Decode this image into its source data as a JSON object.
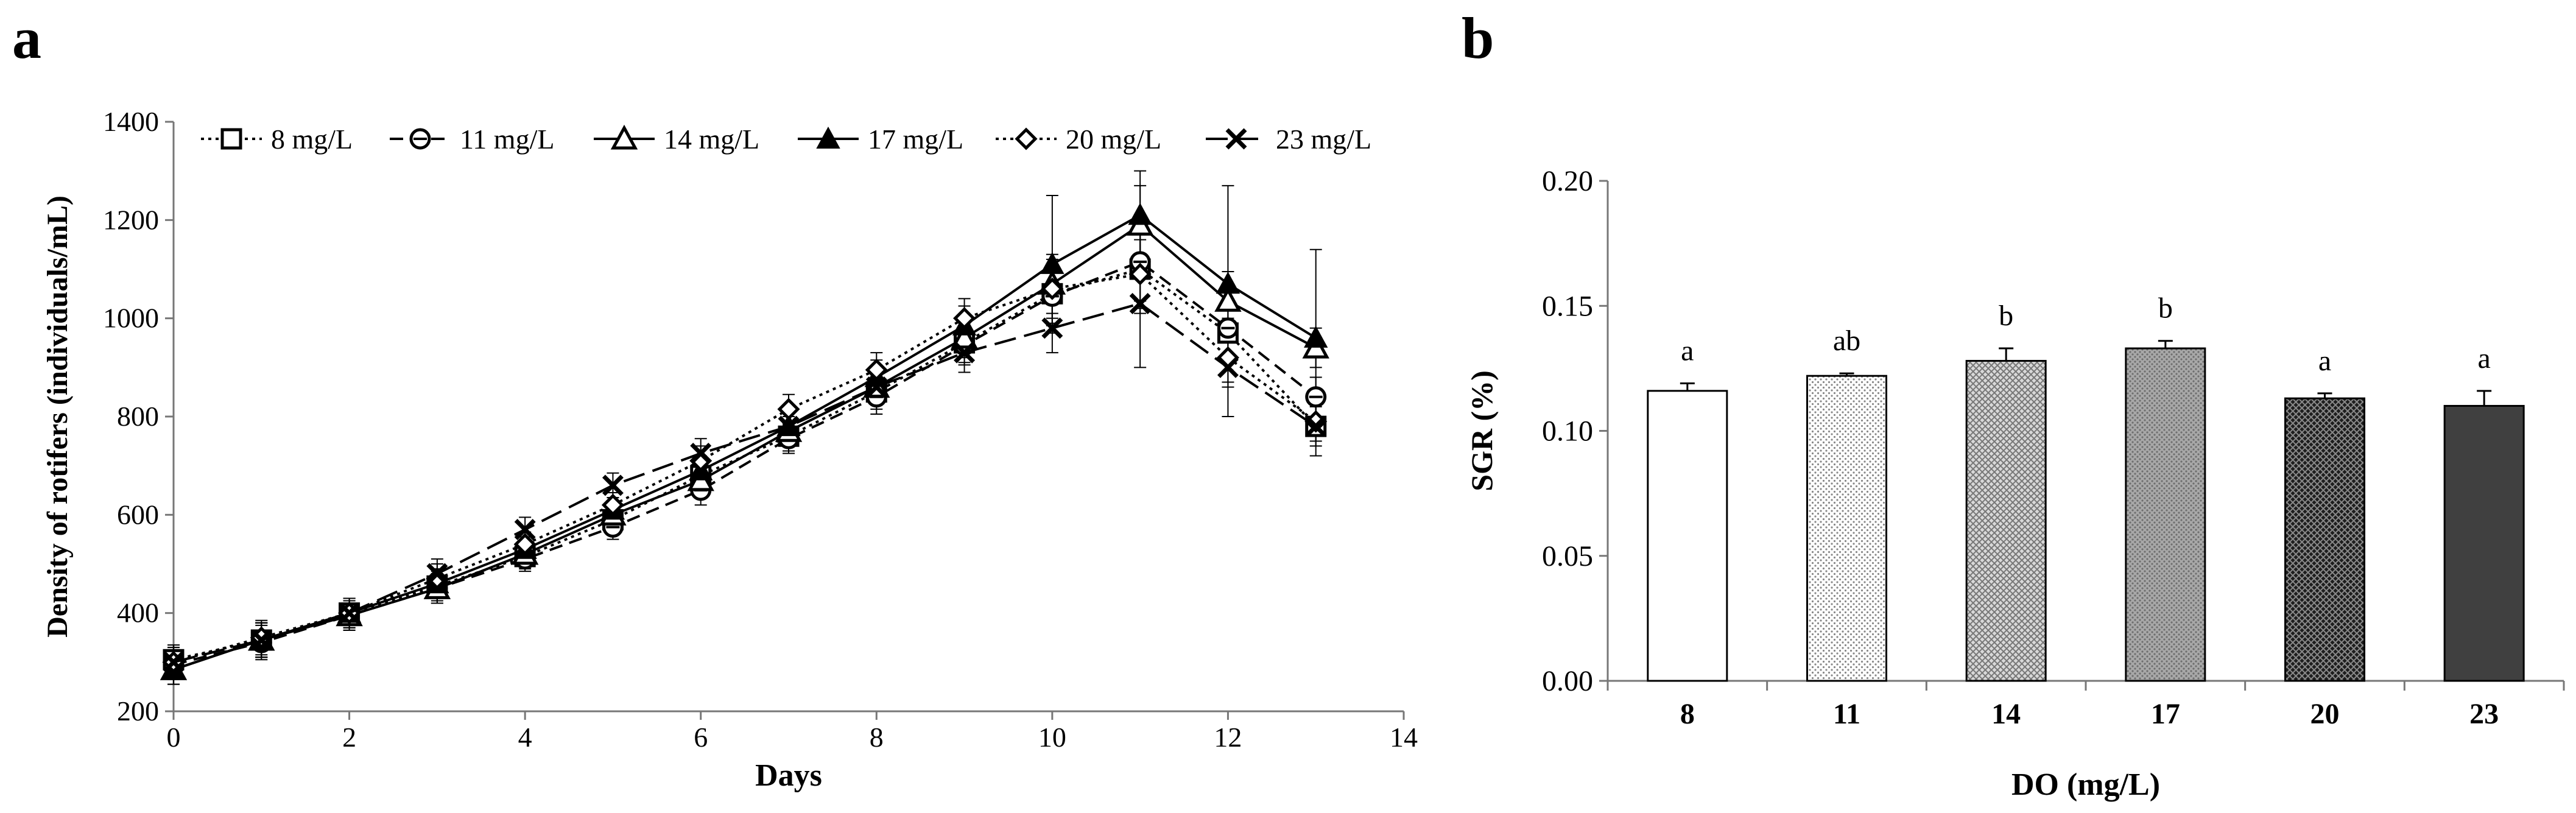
{
  "panels": {
    "a_label": "a",
    "b_label": "b"
  },
  "chart_data": [
    {
      "type": "line",
      "panel": "a",
      "title": "",
      "xlabel": "Days",
      "ylabel": "Density of rotifers (individuals/mL)",
      "xlim": [
        0,
        14
      ],
      "ylim": [
        200,
        1400
      ],
      "xticks": [
        0,
        2,
        4,
        6,
        8,
        10,
        12,
        14
      ],
      "yticks": [
        200,
        400,
        600,
        800,
        1000,
        1200,
        1400
      ],
      "x": [
        0,
        1,
        2,
        3,
        4,
        5,
        6,
        7,
        8,
        9,
        10,
        11,
        12,
        13
      ],
      "legend_position": "top",
      "series": [
        {
          "name": "8 mg/L",
          "marker": "square-open",
          "dash": "dotted",
          "values": [
            305,
            345,
            400,
            455,
            515,
            590,
            680,
            760,
            850,
            950,
            1050,
            1100,
            970,
            780
          ],
          "errors": [
            30,
            35,
            30,
            30,
            25,
            25,
            30,
            30,
            35,
            40,
            60,
            80,
            60,
            40
          ]
        },
        {
          "name": "11 mg/L",
          "marker": "circle-open",
          "dash": "dashed",
          "values": [
            295,
            340,
            395,
            450,
            510,
            575,
            650,
            755,
            840,
            945,
            1045,
            1115,
            980,
            840
          ],
          "errors": [
            30,
            35,
            30,
            30,
            25,
            25,
            30,
            30,
            35,
            40,
            60,
            80,
            60,
            40
          ]
        },
        {
          "name": "14 mg/L",
          "marker": "triangle-open",
          "dash": "solid",
          "values": [
            285,
            345,
            395,
            450,
            520,
            600,
            670,
            770,
            860,
            960,
            1070,
            1190,
            1035,
            940
          ],
          "errors": [
            30,
            35,
            30,
            30,
            25,
            25,
            30,
            30,
            35,
            40,
            60,
            80,
            60,
            40
          ]
        },
        {
          "name": "17 mg/L",
          "marker": "triangle-filled",
          "dash": "solid",
          "values": [
            285,
            345,
            400,
            460,
            530,
            610,
            690,
            780,
            880,
            985,
            1110,
            1210,
            1070,
            960
          ],
          "errors": [
            30,
            35,
            30,
            30,
            25,
            25,
            30,
            30,
            35,
            40,
            140,
            90,
            200,
            180
          ]
        },
        {
          "name": "20 mg/L",
          "marker": "diamond-open",
          "dash": "dotted",
          "values": [
            300,
            350,
            400,
            470,
            540,
            620,
            710,
            815,
            895,
            1000,
            1060,
            1090,
            920,
            790
          ],
          "errors": [
            30,
            35,
            30,
            30,
            25,
            25,
            30,
            30,
            35,
            40,
            60,
            80,
            60,
            40
          ]
        },
        {
          "name": "23 mg/L",
          "marker": "x",
          "dash": "longdash",
          "values": [
            300,
            345,
            400,
            480,
            570,
            660,
            725,
            780,
            860,
            930,
            980,
            1030,
            900,
            780
          ],
          "errors": [
            30,
            35,
            30,
            30,
            25,
            25,
            30,
            30,
            35,
            40,
            50,
            130,
            100,
            60
          ]
        }
      ]
    },
    {
      "type": "bar",
      "panel": "b",
      "title": "",
      "xlabel": "DO (mg/L)",
      "ylabel": "SGR (%)",
      "ylim": [
        0,
        0.2
      ],
      "yticks": [
        "0.00",
        "0.05",
        "0.10",
        "0.15",
        "0.20"
      ],
      "categories": [
        "8",
        "11",
        "14",
        "17",
        "20",
        "23"
      ],
      "values": [
        0.116,
        0.122,
        0.128,
        0.133,
        0.113,
        0.11
      ],
      "errors": [
        0.003,
        0.001,
        0.005,
        0.003,
        0.002,
        0.006
      ],
      "significance": [
        "a",
        "ab",
        "b",
        "b",
        "a",
        "a"
      ],
      "bar_fills": [
        "white",
        "dots-light",
        "dots-medium",
        "dots-gray",
        "dots-dark",
        "solid-dark"
      ]
    }
  ]
}
